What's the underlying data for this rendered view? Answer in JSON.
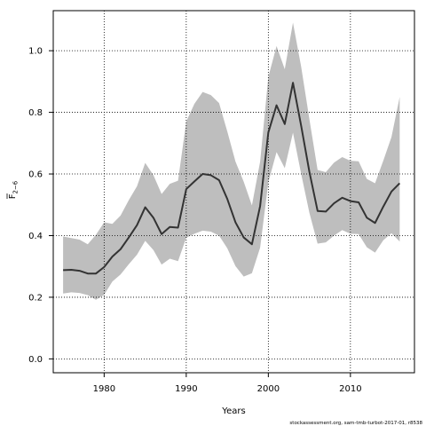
{
  "chart_data": {
    "type": "line",
    "xlabel": "Years",
    "ylabel": "F",
    "ylabel_sub": "2−6",
    "xlim": [
      1973.8,
      2017.8
    ],
    "ylim": [
      -0.045,
      1.13
    ],
    "x_ticks": [
      1980,
      1990,
      2000,
      2010
    ],
    "y_ticks": [
      0.0,
      0.2,
      0.4,
      0.6,
      0.8,
      1.0
    ],
    "y_tick_labels": [
      "0.0",
      "0.2",
      "0.4",
      "0.6",
      "0.8",
      "1.0"
    ],
    "grid": true,
    "grid_style": "dotted",
    "colors": {
      "line": "#333333",
      "band": "#bebebe",
      "grid": "#000000"
    },
    "x": [
      1975,
      1976,
      1977,
      1978,
      1979,
      1980,
      1981,
      1982,
      1983,
      1984,
      1985,
      1986,
      1987,
      1988,
      1989,
      1990,
      1991,
      1992,
      1993,
      1994,
      1995,
      1996,
      1997,
      1998,
      1999,
      2000,
      2001,
      2002,
      2003,
      2004,
      2005,
      2006,
      2007,
      2008,
      2009,
      2010,
      2011,
      2012,
      2013,
      2014,
      2015,
      2016
    ],
    "series": [
      {
        "type": "line",
        "values": [
          0.288,
          0.289,
          0.286,
          0.277,
          0.277,
          0.298,
          0.332,
          0.356,
          0.394,
          0.434,
          0.492,
          0.458,
          0.405,
          0.428,
          0.426,
          0.551,
          0.576,
          0.6,
          0.596,
          0.58,
          0.519,
          0.443,
          0.394,
          0.372,
          0.496,
          0.735,
          0.823,
          0.762,
          0.896,
          0.756,
          0.607,
          0.48,
          0.478,
          0.505,
          0.523,
          0.512,
          0.508,
          0.458,
          0.441,
          0.494,
          0.543,
          0.57
        ]
      },
      {
        "type": "band",
        "upper": [
          0.397,
          0.392,
          0.387,
          0.372,
          0.403,
          0.443,
          0.438,
          0.465,
          0.515,
          0.56,
          0.636,
          0.596,
          0.535,
          0.568,
          0.578,
          0.77,
          0.828,
          0.866,
          0.856,
          0.83,
          0.738,
          0.64,
          0.575,
          0.498,
          0.64,
          0.915,
          1.015,
          0.94,
          1.091,
          0.948,
          0.778,
          0.613,
          0.606,
          0.637,
          0.655,
          0.643,
          0.641,
          0.584,
          0.57,
          0.643,
          0.72,
          0.85
        ],
        "lower": [
          0.212,
          0.216,
          0.214,
          0.207,
          0.192,
          0.208,
          0.251,
          0.274,
          0.307,
          0.338,
          0.383,
          0.353,
          0.306,
          0.325,
          0.317,
          0.393,
          0.406,
          0.416,
          0.413,
          0.4,
          0.359,
          0.301,
          0.267,
          0.278,
          0.361,
          0.573,
          0.671,
          0.619,
          0.734,
          0.6,
          0.474,
          0.374,
          0.378,
          0.4,
          0.418,
          0.406,
          0.405,
          0.362,
          0.345,
          0.385,
          0.408,
          0.381
        ]
      }
    ]
  },
  "footer": "stockassessment.org, sam-tmb-turbot-2017-01, r8538"
}
